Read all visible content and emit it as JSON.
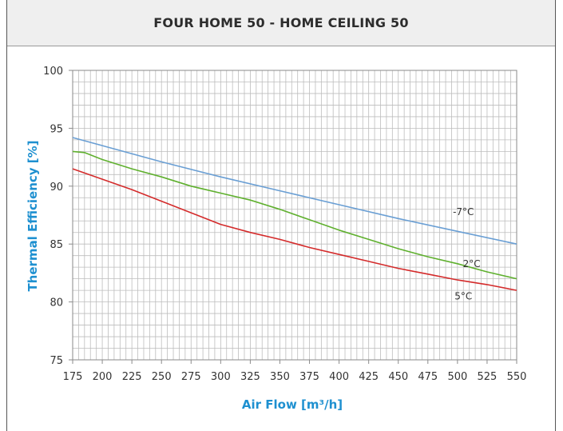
{
  "chart_data": {
    "type": "line",
    "title": "FOUR HOME 50 - HOME CEILING 50",
    "xlabel": "Air Flow [m³/h]",
    "ylabel": "Thermal Efficiency [%]",
    "xlim": [
      175,
      550
    ],
    "ylim": [
      75,
      100
    ],
    "x_ticks": [
      "175",
      "200",
      "225",
      "250",
      "275",
      "300",
      "325",
      "350",
      "375",
      "400",
      "425",
      "450",
      "475",
      "500",
      "525",
      "550"
    ],
    "y_ticks": [
      "75",
      "80",
      "85",
      "90",
      "95",
      "100"
    ],
    "grid": true,
    "series": [
      {
        "name": "-7°C",
        "color": "#6a9fd4",
        "x": [
          175,
          200,
          250,
          300,
          350,
          400,
          450,
          500,
          550
        ],
        "y": [
          94.2,
          93.5,
          92.1,
          90.8,
          89.6,
          88.4,
          87.2,
          86.1,
          85.0
        ]
      },
      {
        "name": "2°C",
        "color": "#5fb02e",
        "x": [
          175,
          185,
          200,
          225,
          250,
          275,
          300,
          325,
          350,
          375,
          400,
          425,
          450,
          475,
          500,
          525,
          550
        ],
        "y": [
          93.0,
          92.9,
          92.3,
          91.5,
          90.8,
          90.0,
          89.4,
          88.8,
          88.0,
          87.1,
          86.2,
          85.4,
          84.6,
          83.9,
          83.3,
          82.6,
          82.0
        ]
      },
      {
        "name": "5°C",
        "color": "#d42b2b",
        "x": [
          175,
          200,
          225,
          250,
          275,
          300,
          325,
          350,
          375,
          400,
          425,
          450,
          475,
          500,
          525,
          550
        ],
        "y": [
          91.5,
          90.6,
          89.7,
          88.7,
          87.7,
          86.7,
          86.0,
          85.4,
          84.7,
          84.1,
          83.5,
          82.9,
          82.4,
          81.9,
          81.5,
          81.0
        ]
      }
    ]
  }
}
